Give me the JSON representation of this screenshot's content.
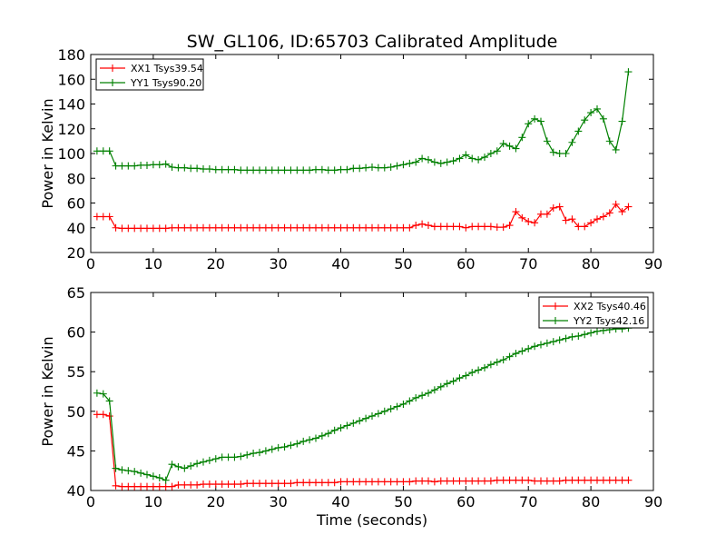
{
  "figure": {
    "title": "SW_GL106, ID:65703 Calibrated Amplitude",
    "shared_xlabel": "Time (seconds)"
  },
  "chart_data": [
    {
      "type": "line",
      "title": "SW_GL106, ID:65703 Calibrated Amplitude",
      "xlabel": "",
      "ylabel": "Power in Kelvin",
      "xlim": [
        0,
        90
      ],
      "ylim": [
        20,
        180
      ],
      "xticks": [
        0,
        10,
        20,
        30,
        40,
        50,
        60,
        70,
        80,
        90
      ],
      "yticks": [
        20,
        40,
        60,
        80,
        100,
        120,
        140,
        160,
        180
      ],
      "grid": false,
      "legend_position": "top-left",
      "x": [
        1,
        2,
        3,
        4,
        5,
        6,
        7,
        8,
        9,
        10,
        11,
        12,
        13,
        14,
        15,
        16,
        17,
        18,
        19,
        20,
        21,
        22,
        23,
        24,
        25,
        26,
        27,
        28,
        29,
        30,
        31,
        32,
        33,
        34,
        35,
        36,
        37,
        38,
        39,
        40,
        41,
        42,
        43,
        44,
        45,
        46,
        47,
        48,
        49,
        50,
        51,
        52,
        53,
        54,
        55,
        56,
        57,
        58,
        59,
        60,
        61,
        62,
        63,
        64,
        65,
        66,
        67,
        68,
        69,
        70,
        71,
        72,
        73,
        74,
        75,
        76,
        77,
        78,
        79,
        80,
        81,
        82,
        83,
        84,
        85,
        86
      ],
      "series": [
        {
          "name": "XX1 Tsys39.54",
          "color": "#ff0000",
          "values": [
            49,
            49,
            49,
            40,
            39.5,
            39.5,
            39.5,
            39.5,
            39.5,
            39.5,
            39.5,
            39.5,
            40,
            40,
            40,
            40,
            40,
            40,
            40,
            40,
            40,
            40,
            40,
            40,
            40,
            40,
            40,
            40,
            40,
            40,
            40,
            40,
            40,
            40,
            40,
            40,
            40,
            40,
            40,
            40,
            40,
            40,
            40,
            40,
            40,
            40,
            40,
            40,
            40,
            40,
            40,
            42,
            43,
            42,
            41,
            41,
            41,
            41,
            41,
            40,
            41,
            41,
            41,
            41,
            40.5,
            40.5,
            42,
            53,
            48,
            45,
            44,
            51,
            51,
            56,
            57,
            46,
            47,
            41,
            41,
            44,
            47,
            49,
            52,
            59,
            53,
            57
          ]
        },
        {
          "name": "YY1 Tsys90.20",
          "color": "#008000",
          "values": [
            102,
            102,
            102,
            90,
            90,
            90,
            90,
            90.5,
            90.5,
            91,
            91,
            91.5,
            89,
            88.5,
            88.5,
            88,
            88,
            87.5,
            87.5,
            87,
            87,
            87,
            87,
            86.5,
            86.5,
            86.5,
            86.5,
            86.5,
            86.5,
            86.5,
            86.5,
            86.5,
            86.5,
            86.5,
            86.5,
            87,
            87,
            86.5,
            86.5,
            87,
            87,
            88,
            88,
            88.5,
            89,
            88.5,
            88.5,
            89,
            90,
            91,
            92,
            93,
            96,
            95,
            93,
            92,
            93,
            94,
            96,
            99,
            96,
            95,
            97,
            100,
            102,
            108,
            106,
            104,
            113,
            124,
            128,
            126,
            110,
            101,
            100,
            100,
            109,
            118,
            127,
            133,
            136,
            128,
            110,
            103,
            126,
            166
          ]
        }
      ]
    },
    {
      "type": "line",
      "title": "",
      "xlabel": "Time (seconds)",
      "ylabel": "Power in Kelvin",
      "xlim": [
        0,
        90
      ],
      "ylim": [
        40,
        65
      ],
      "xticks": [
        0,
        10,
        20,
        30,
        40,
        50,
        60,
        70,
        80,
        90
      ],
      "yticks": [
        40,
        45,
        50,
        55,
        60,
        65
      ],
      "grid": false,
      "legend_position": "top-right",
      "x": [
        1,
        2,
        3,
        4,
        5,
        6,
        7,
        8,
        9,
        10,
        11,
        12,
        13,
        14,
        15,
        16,
        17,
        18,
        19,
        20,
        21,
        22,
        23,
        24,
        25,
        26,
        27,
        28,
        29,
        30,
        31,
        32,
        33,
        34,
        35,
        36,
        37,
        38,
        39,
        40,
        41,
        42,
        43,
        44,
        45,
        46,
        47,
        48,
        49,
        50,
        51,
        52,
        53,
        54,
        55,
        56,
        57,
        58,
        59,
        60,
        61,
        62,
        63,
        64,
        65,
        66,
        67,
        68,
        69,
        70,
        71,
        72,
        73,
        74,
        75,
        76,
        77,
        78,
        79,
        80,
        81,
        82,
        83,
        84,
        85,
        86
      ],
      "series": [
        {
          "name": "XX2 Tsys40.46",
          "color": "#ff0000",
          "values": [
            49.6,
            49.6,
            49.4,
            40.6,
            40.5,
            40.5,
            40.5,
            40.5,
            40.5,
            40.5,
            40.5,
            40.5,
            40.5,
            40.7,
            40.7,
            40.7,
            40.7,
            40.8,
            40.8,
            40.8,
            40.8,
            40.8,
            40.8,
            40.8,
            40.9,
            40.9,
            40.9,
            40.9,
            40.9,
            40.9,
            40.9,
            40.9,
            41,
            41,
            41,
            41,
            41,
            41,
            41,
            41.1,
            41.1,
            41.1,
            41.1,
            41.1,
            41.1,
            41.1,
            41.1,
            41.1,
            41.1,
            41.1,
            41.1,
            41.2,
            41.2,
            41.2,
            41.1,
            41.2,
            41.2,
            41.2,
            41.2,
            41.2,
            41.2,
            41.2,
            41.2,
            41.2,
            41.3,
            41.3,
            41.3,
            41.3,
            41.3,
            41.3,
            41.2,
            41.2,
            41.2,
            41.2,
            41.2,
            41.3,
            41.3,
            41.3,
            41.3,
            41.3,
            41.3,
            41.3,
            41.3,
            41.3,
            41.3,
            41.3
          ]
        },
        {
          "name": "YY2 Tsys42.16",
          "color": "#008000",
          "values": [
            52.3,
            52.2,
            51.3,
            42.8,
            42.6,
            42.5,
            42.4,
            42.2,
            42,
            41.8,
            41.6,
            41.3,
            43.3,
            43,
            42.8,
            43.1,
            43.4,
            43.6,
            43.8,
            44,
            44.2,
            44.2,
            44.2,
            44.3,
            44.5,
            44.7,
            44.8,
            45,
            45.2,
            45.4,
            45.5,
            45.7,
            45.9,
            46.2,
            46.4,
            46.6,
            46.9,
            47.2,
            47.6,
            47.9,
            48.2,
            48.5,
            48.8,
            49.1,
            49.4,
            49.7,
            50,
            50.3,
            50.6,
            50.9,
            51.3,
            51.7,
            52,
            52.3,
            52.7,
            53.1,
            53.5,
            53.8,
            54.2,
            54.5,
            54.9,
            55.2,
            55.5,
            55.9,
            56.2,
            56.5,
            56.9,
            57.3,
            57.6,
            57.9,
            58.2,
            58.4,
            58.6,
            58.8,
            59,
            59.2,
            59.4,
            59.5,
            59.7,
            59.9,
            60.1,
            60.2,
            60.3,
            60.4,
            60.4,
            60.5
          ]
        }
      ]
    }
  ]
}
